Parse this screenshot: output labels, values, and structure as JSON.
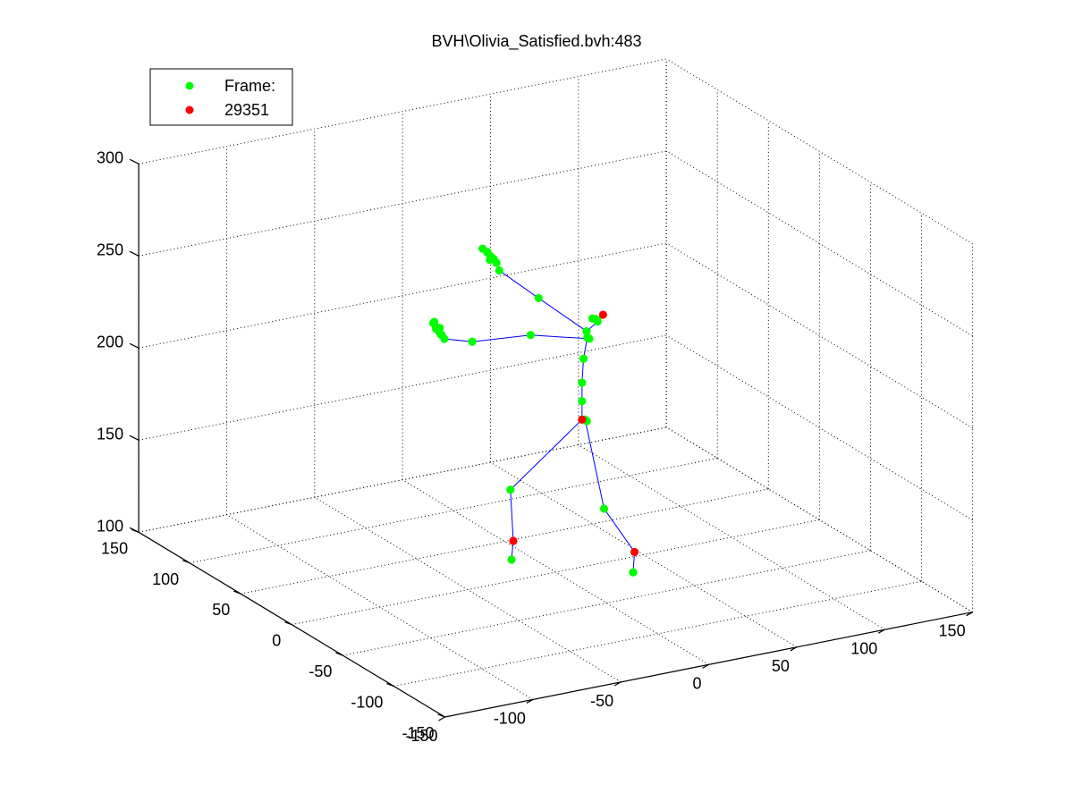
{
  "window": {
    "title": "BVH\\Olivia_Satisfied.bvh:483"
  },
  "chart_data": {
    "type": "scatter",
    "projection": "3d",
    "title": "BVH\\Olivia_Satisfied.bvh:483",
    "xlabel": "",
    "ylabel": "",
    "zlabel": "",
    "xlim": [
      -150,
      150
    ],
    "ylim": [
      -150,
      150
    ],
    "zlim": [
      100,
      300
    ],
    "x_ticks": [
      "-150",
      "-100",
      "-50",
      "0",
      "50",
      "100",
      "150"
    ],
    "y_ticks": [
      "-150",
      "-100",
      "-50",
      "0",
      "50",
      "100",
      "150"
    ],
    "z_ticks": [
      "100",
      "150",
      "200",
      "250",
      "300"
    ],
    "grid": true,
    "legend": {
      "placement": "top-left",
      "entries": [
        {
          "label": "Frame:",
          "color": "#00ff00"
        },
        {
          "label": "29351",
          "color": "#ff0000"
        }
      ]
    },
    "colors": {
      "joint": "#00ff00",
      "marked_joint": "#ff0000",
      "bone": "#0000ff",
      "grid": "#000000"
    },
    "series": [
      {
        "name": "Frame:",
        "color": "#00ff00",
        "points": [
          {
            "id": "hips",
            "x": 15,
            "y": 0,
            "z": 180
          },
          {
            "id": "spine",
            "x": 15,
            "y": 0,
            "z": 190
          },
          {
            "id": "spine1",
            "x": 15,
            "y": 0,
            "z": 200
          },
          {
            "id": "spine2",
            "x": 17,
            "y": 2,
            "z": 212
          },
          {
            "id": "spine3",
            "x": 18,
            "y": 0,
            "z": 224
          },
          {
            "id": "neck",
            "x": 18,
            "y": -10,
            "z": 236
          },
          {
            "id": "neck_r",
            "x": 19,
            "y": -6,
            "z": 236
          },
          {
            "id": "neck_c",
            "x": 19,
            "y": -8,
            "z": 236
          },
          {
            "id": "head",
            "x": 18,
            "y": -5,
            "z": 236
          },
          {
            "id": "l_shoulder",
            "x": 18,
            "y": -2,
            "z": 224
          },
          {
            "id": "l_arm",
            "x": 2,
            "y": 28,
            "z": 219
          },
          {
            "id": "l_forearm",
            "x": -12,
            "y": 61,
            "z": 207
          },
          {
            "id": "l_hand_1",
            "x": -18,
            "y": 78,
            "z": 204
          },
          {
            "id": "l_hand_2",
            "x": -19,
            "y": 79,
            "z": 206
          },
          {
            "id": "l_hand_3",
            "x": -20,
            "y": 80,
            "z": 208
          },
          {
            "id": "l_hand_4",
            "x": -21,
            "y": 81,
            "z": 210
          },
          {
            "id": "l_hand_5",
            "x": -22,
            "y": 82,
            "z": 212
          },
          {
            "id": "l_hand_6",
            "x": -21,
            "y": 81,
            "z": 209
          },
          {
            "id": "l_hand_7",
            "x": -19,
            "y": 80,
            "z": 206
          },
          {
            "id": "l_hand_8",
            "x": -20,
            "y": 79,
            "z": 210
          },
          {
            "id": "l_hand_9",
            "x": -22,
            "y": 81,
            "z": 213
          },
          {
            "id": "r_shoulder",
            "x": 13,
            "y": -8,
            "z": 231
          },
          {
            "id": "r_arm",
            "x": -1,
            "y": 15,
            "z": 244
          },
          {
            "id": "r_forearm",
            "x": -10,
            "y": 38,
            "z": 253
          },
          {
            "id": "r_hand_1",
            "x": -11,
            "y": 39,
            "z": 257
          },
          {
            "id": "r_hand_2",
            "x": -13,
            "y": 41,
            "z": 260
          },
          {
            "id": "r_hand_3",
            "x": -14,
            "y": 43,
            "z": 262
          },
          {
            "id": "r_hand_4",
            "x": -15,
            "y": 41,
            "z": 263
          },
          {
            "id": "r_hand_5",
            "x": -16,
            "y": 44,
            "z": 264
          },
          {
            "id": "r_hand_6",
            "x": -12,
            "y": 40,
            "z": 259
          },
          {
            "id": "r_hand_7",
            "x": -13,
            "y": 42,
            "z": 258
          },
          {
            "id": "r_hand_8",
            "x": -14,
            "y": 40,
            "z": 261
          },
          {
            "id": "l_upleg",
            "x": 16,
            "y": -3,
            "z": 180
          },
          {
            "id": "l_leg",
            "x": -17,
            "y": 15,
            "z": 143
          },
          {
            "id": "l_foot",
            "x": -10,
            "y": 26,
            "z": 100
          },
          {
            "id": "r_upleg",
            "x": 15,
            "y": -3,
            "z": 181
          },
          {
            "id": "r_leg",
            "x": 20,
            "y": -13,
            "z": 135
          },
          {
            "id": "r_foot",
            "x": 33,
            "y": -19,
            "z": 100
          }
        ]
      },
      {
        "name": "29351",
        "color": "#ff0000",
        "points": [
          {
            "id": "hips_marker",
            "x": 15,
            "y": 0,
            "z": 180
          },
          {
            "id": "head_end",
            "x": 20,
            "y": -12,
            "z": 240
          },
          {
            "id": "l_toe_base",
            "x": -9,
            "y": 26,
            "z": 110
          },
          {
            "id": "r_toe_base",
            "x": 35,
            "y": -17,
            "z": 110
          }
        ]
      }
    ],
    "bones": [
      [
        "hips",
        "spine"
      ],
      [
        "spine",
        "spine1"
      ],
      [
        "spine1",
        "spine2"
      ],
      [
        "spine2",
        "spine3"
      ],
      [
        "spine3",
        "l_shoulder"
      ],
      [
        "l_shoulder",
        "l_arm"
      ],
      [
        "l_arm",
        "l_forearm"
      ],
      [
        "l_forearm",
        "l_hand_1"
      ],
      [
        "spine3",
        "r_shoulder"
      ],
      [
        "r_shoulder",
        "r_arm"
      ],
      [
        "r_arm",
        "r_forearm"
      ],
      [
        "r_forearm",
        "r_hand_1"
      ],
      [
        "r_shoulder",
        "neck"
      ],
      [
        "neck",
        "head_end"
      ],
      [
        "neck",
        "neck_r"
      ],
      [
        "hips_marker",
        "l_leg"
      ],
      [
        "l_leg",
        "l_toe_base"
      ],
      [
        "l_toe_base",
        "l_foot"
      ],
      [
        "r_upleg",
        "r_leg"
      ],
      [
        "r_leg",
        "r_toe_base"
      ],
      [
        "r_toe_base",
        "r_foot"
      ]
    ]
  }
}
